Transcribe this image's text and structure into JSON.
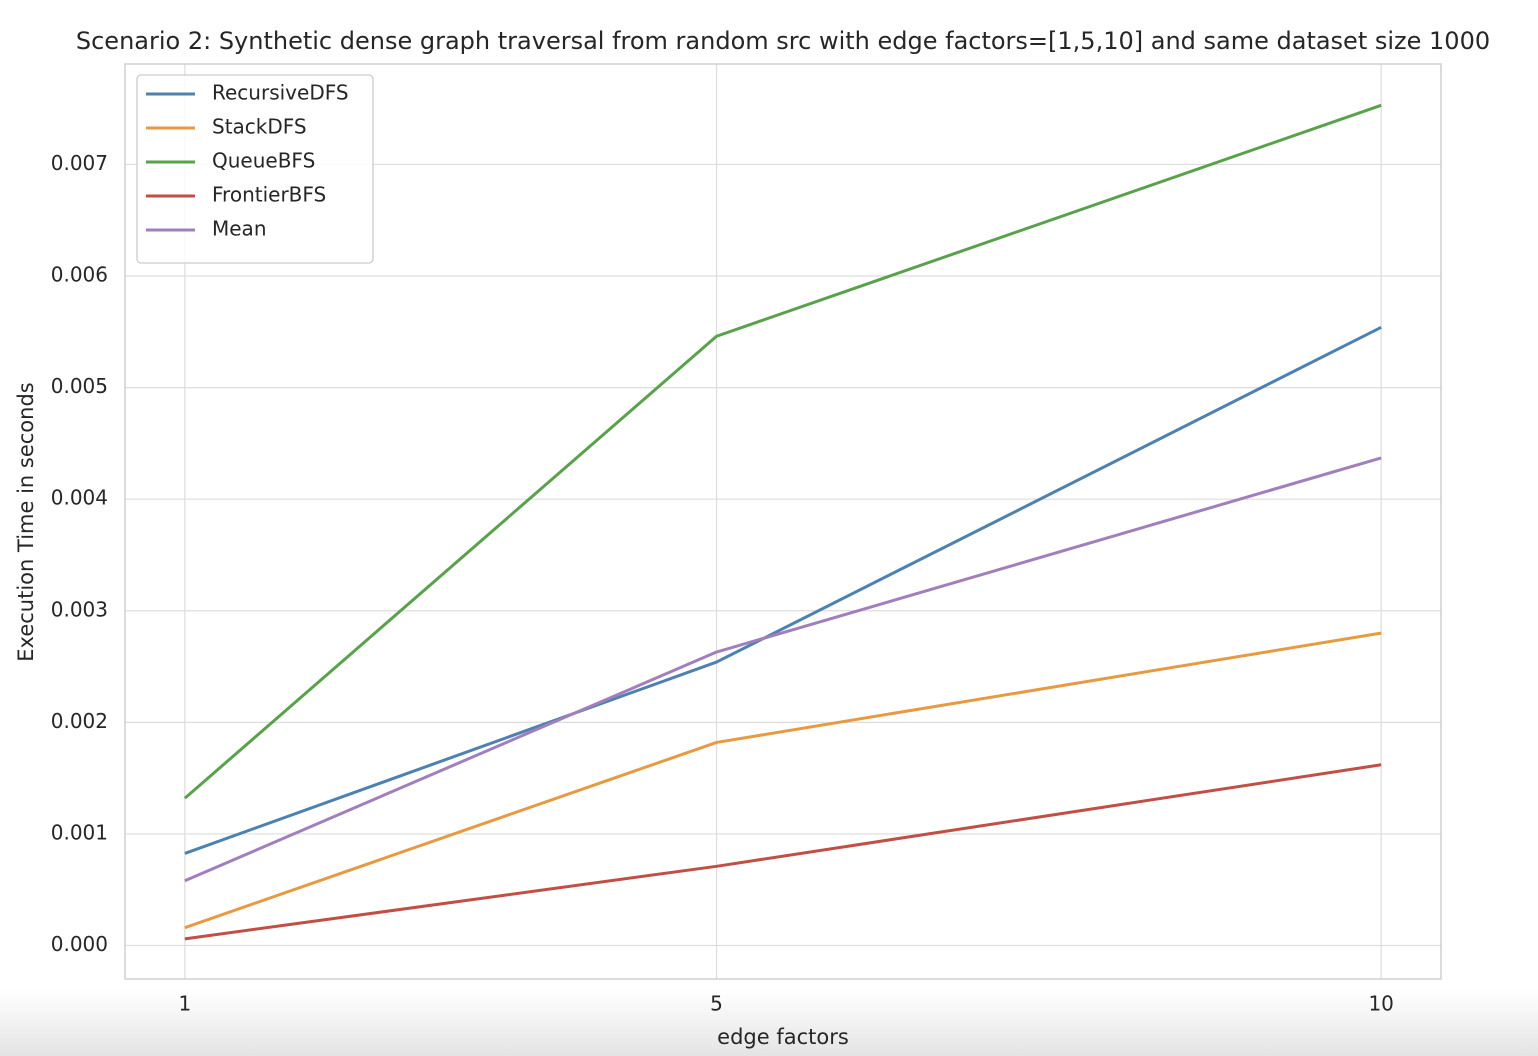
{
  "chart_data": {
    "type": "line",
    "title": "Scenario 2: Synthetic dense graph traversal from random src with edge factors=[1,5,10] and same dataset size 1000",
    "x_label": "edge factors",
    "y_label": "Execution Time in seconds",
    "x": [
      1,
      5,
      10
    ],
    "xlim": [
      0.55,
      10.45
    ],
    "xticks": [
      1,
      5,
      10
    ],
    "ylim": [
      -0.0003,
      0.0079
    ],
    "yticks": [
      {
        "value": 0,
        "label": "0.000"
      },
      {
        "value": 0.001,
        "label": "0.001"
      },
      {
        "value": 0.002,
        "label": "0.002"
      },
      {
        "value": 0.003,
        "label": "0.003"
      },
      {
        "value": 0.004,
        "label": "0.004"
      },
      {
        "value": 0.005,
        "label": "0.005"
      },
      {
        "value": 0.006,
        "label": "0.006"
      },
      {
        "value": 0.007,
        "label": "0.007"
      }
    ],
    "grid": true,
    "legend": "upper left",
    "series": [
      {
        "name": "RecursiveDFS",
        "color": "#4c81b0",
        "values": [
          0.000825,
          0.00254,
          0.00554
        ]
      },
      {
        "name": "StackDFS",
        "color": "#e69a42",
        "values": [
          0.00016,
          0.00182,
          0.0028
        ]
      },
      {
        "name": "QueueBFS",
        "color": "#5aa14c",
        "values": [
          0.00132,
          0.00546,
          0.00753
        ]
      },
      {
        "name": "FrontierBFS",
        "color": "#c14f45",
        "values": [
          6e-05,
          0.00071,
          0.00162
        ]
      },
      {
        "name": "Mean",
        "color": "#a17fbd",
        "values": [
          0.00058,
          0.00263,
          0.00437
        ]
      }
    ]
  }
}
